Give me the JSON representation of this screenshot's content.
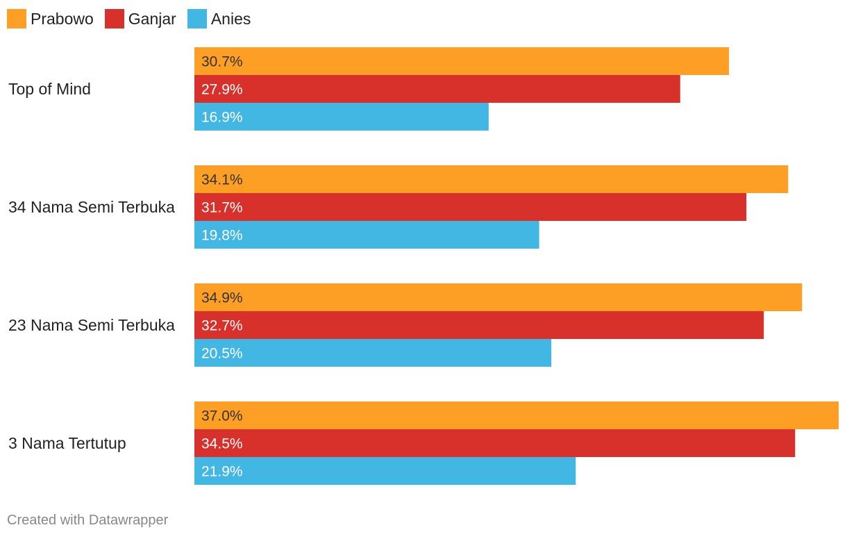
{
  "chart_data": {
    "type": "bar",
    "orientation": "horizontal",
    "categories": [
      "Top of Mind",
      "34 Nama Semi Terbuka",
      "23 Nama Semi Terbuka",
      "3 Nama Tertutup"
    ],
    "series": [
      {
        "name": "Prabowo",
        "color": "#fe9f25",
        "label_color": "#333333",
        "values": [
          30.7,
          34.1,
          34.9,
          37.0
        ]
      },
      {
        "name": "Ganjar",
        "color": "#d8312b",
        "label_color": "#ffffff",
        "values": [
          27.9,
          31.7,
          32.7,
          34.5
        ]
      },
      {
        "name": "Anies",
        "color": "#42b7e3",
        "label_color": "#ffffff",
        "values": [
          16.9,
          19.8,
          20.5,
          21.9
        ]
      }
    ],
    "value_suffix": "%",
    "value_decimals": 1,
    "xlim": [
      0,
      37.0
    ],
    "legend": "top-left",
    "grid": false
  },
  "footer": {
    "credit": "Created with Datawrapper"
  }
}
